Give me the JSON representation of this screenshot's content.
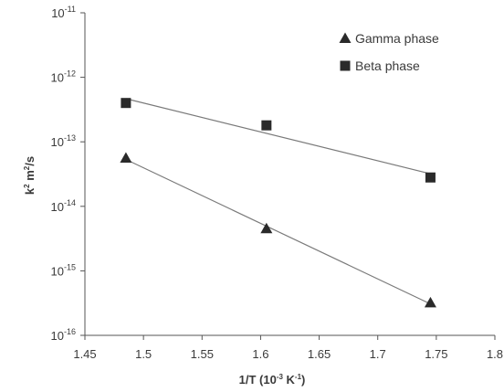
{
  "chart_data": {
    "type": "scatter",
    "x_ticks": [
      1.45,
      1.5,
      1.55,
      1.6,
      1.65,
      1.7,
      1.75,
      1.8
    ],
    "x_tick_labels": [
      "1.45",
      "1.5",
      "1.55",
      "1.6",
      "1.65",
      "1.7",
      "1.75",
      "1.8"
    ],
    "y_scale": "log",
    "y_tick_exponents": [
      -11,
      -12,
      -13,
      -14,
      -15,
      -16
    ],
    "xlabel": {
      "main": "1/T (10",
      "sup1": "-3",
      "mid": " K",
      "sup2": "-1",
      "end": ")"
    },
    "ylabel": {
      "main": "k",
      "sup1": "2",
      "mid": " m",
      "sup2": "2",
      "end": "/s"
    },
    "xlim": [
      1.45,
      1.8
    ],
    "ylim": [
      1e-16,
      1e-11
    ],
    "grid": false,
    "legend_position": "top-right",
    "series": [
      {
        "name": "Gamma phase",
        "marker": "triangle",
        "color": "#2a2a2a",
        "trendline": "exponential",
        "points": [
          {
            "x": 1.485,
            "y": 5.6e-14
          },
          {
            "x": 1.605,
            "y": 4.5e-15
          },
          {
            "x": 1.745,
            "y": 3.2e-16
          }
        ]
      },
      {
        "name": "Beta phase",
        "marker": "square",
        "color": "#2a2a2a",
        "trendline": "exponential",
        "points": [
          {
            "x": 1.485,
            "y": 4e-13
          },
          {
            "x": 1.605,
            "y": 1.8e-13
          },
          {
            "x": 1.745,
            "y": 2.8e-14
          }
        ]
      }
    ]
  }
}
